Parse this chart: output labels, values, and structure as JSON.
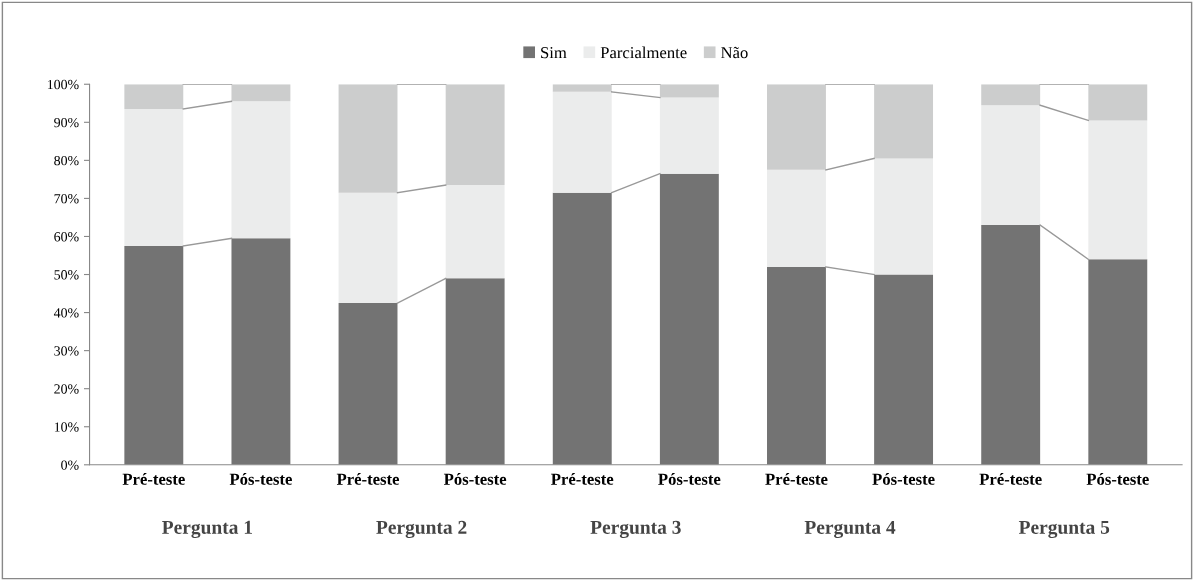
{
  "chart_data": {
    "type": "bar",
    "stacked": true,
    "categories": [
      "Pré-teste",
      "Pós-teste",
      "Pré-teste",
      "Pós-teste",
      "Pré-teste",
      "Pós-teste",
      "Pré-teste",
      "Pós-teste",
      "Pré-teste",
      "Pós-teste"
    ],
    "series": [
      {
        "name": "Sim",
        "color": "#737373",
        "values": [
          57.5,
          59.5,
          42.5,
          49,
          71.5,
          76.5,
          52,
          50,
          63,
          54
        ]
      },
      {
        "name": "Parcialmente",
        "color": "#ebecec",
        "values": [
          36,
          36,
          29,
          24.5,
          26.5,
          20,
          25.5,
          30.5,
          31.5,
          36.5
        ]
      },
      {
        "name": "Não",
        "color": "#cccdcd",
        "values": [
          6.5,
          4.5,
          28.5,
          26.5,
          2,
          3.5,
          22.5,
          19.5,
          5.5,
          9.5
        ]
      }
    ],
    "ylim": [
      0,
      100
    ],
    "yticks": [
      {
        "value": 0,
        "label": "0%"
      },
      {
        "value": 10,
        "label": "10%"
      },
      {
        "value": 20,
        "label": "20%"
      },
      {
        "value": 30,
        "label": "30%"
      },
      {
        "value": 40,
        "label": "40%"
      },
      {
        "value": 50,
        "label": "50%"
      },
      {
        "value": 60,
        "label": "60%"
      },
      {
        "value": 70,
        "label": "70%"
      },
      {
        "value": 80,
        "label": "80%"
      },
      {
        "value": 90,
        "label": "90%"
      },
      {
        "value": 100,
        "label": "100%"
      }
    ],
    "annotations": [
      "Pergunta 1",
      "Pergunta 2",
      "Pergunta 3",
      "Pergunta 4",
      "Pergunta 5"
    ],
    "legend": "top",
    "grid": false
  }
}
